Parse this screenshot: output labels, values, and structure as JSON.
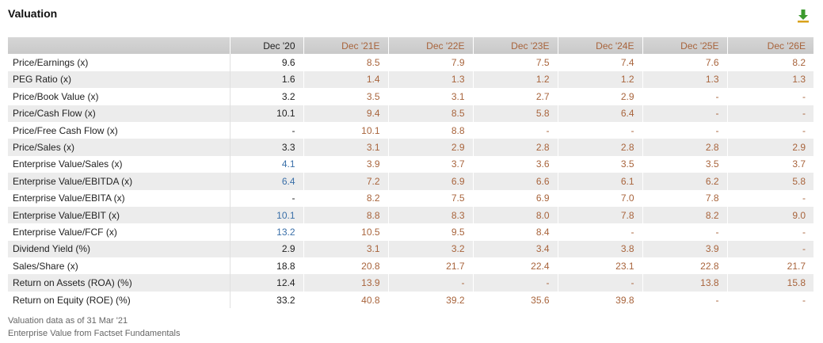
{
  "title": "Valuation",
  "download_icon": "download-icon",
  "columns": [
    "Dec '20",
    "Dec '21E",
    "Dec '22E",
    "Dec '23E",
    "Dec '24E",
    "Dec '25E",
    "Dec '26E"
  ],
  "rows": [
    {
      "label": "Price/Earnings (x)",
      "values": [
        "9.6",
        "8.5",
        "7.9",
        "7.5",
        "7.4",
        "7.6",
        "8.2"
      ],
      "first_blue": false
    },
    {
      "label": "PEG Ratio (x)",
      "values": [
        "1.6",
        "1.4",
        "1.3",
        "1.2",
        "1.2",
        "1.3",
        "1.3"
      ],
      "first_blue": false
    },
    {
      "label": "Price/Book Value (x)",
      "values": [
        "3.2",
        "3.5",
        "3.1",
        "2.7",
        "2.9",
        "-",
        "-"
      ],
      "first_blue": false
    },
    {
      "label": "Price/Cash Flow (x)",
      "values": [
        "10.1",
        "9.4",
        "8.5",
        "5.8",
        "6.4",
        "-",
        "-"
      ],
      "first_blue": false
    },
    {
      "label": "Price/Free Cash Flow (x)",
      "values": [
        "-",
        "10.1",
        "8.8",
        "-",
        "-",
        "-",
        "-"
      ],
      "first_blue": false
    },
    {
      "label": "Price/Sales (x)",
      "values": [
        "3.3",
        "3.1",
        "2.9",
        "2.8",
        "2.8",
        "2.8",
        "2.9"
      ],
      "first_blue": false
    },
    {
      "label": "Enterprise Value/Sales (x)",
      "values": [
        "4.1",
        "3.9",
        "3.7",
        "3.6",
        "3.5",
        "3.5",
        "3.7"
      ],
      "first_blue": true
    },
    {
      "label": "Enterprise Value/EBITDA (x)",
      "values": [
        "6.4",
        "7.2",
        "6.9",
        "6.6",
        "6.1",
        "6.2",
        "5.8"
      ],
      "first_blue": true
    },
    {
      "label": "Enterprise Value/EBITA (x)",
      "values": [
        "-",
        "8.2",
        "7.5",
        "6.9",
        "7.0",
        "7.8",
        "-"
      ],
      "first_blue": false
    },
    {
      "label": "Enterprise Value/EBIT (x)",
      "values": [
        "10.1",
        "8.8",
        "8.3",
        "8.0",
        "7.8",
        "8.2",
        "9.0"
      ],
      "first_blue": true
    },
    {
      "label": "Enterprise Value/FCF (x)",
      "values": [
        "13.2",
        "10.5",
        "9.5",
        "8.4",
        "-",
        "-",
        "-"
      ],
      "first_blue": true
    },
    {
      "label": "Dividend Yield (%)",
      "values": [
        "2.9",
        "3.1",
        "3.2",
        "3.4",
        "3.8",
        "3.9",
        "-"
      ],
      "first_blue": false
    },
    {
      "label": "Sales/Share (x)",
      "values": [
        "18.8",
        "20.8",
        "21.7",
        "22.4",
        "23.1",
        "22.8",
        "21.7"
      ],
      "first_blue": false
    },
    {
      "label": "Return on Assets (ROA) (%)",
      "values": [
        "12.4",
        "13.9",
        "-",
        "-",
        "-",
        "13.8",
        "15.8"
      ],
      "first_blue": false
    },
    {
      "label": "Return on Equity (ROE) (%)",
      "values": [
        "33.2",
        "40.8",
        "39.2",
        "35.6",
        "39.8",
        "-",
        "-"
      ],
      "first_blue": false
    }
  ],
  "footnotes": [
    "Valuation data as of 31 Mar '21",
    "Enterprise Value from Factset Fundamentals"
  ],
  "colors": {
    "estimate": "#a8643c",
    "link_blue": "#3a6fa8",
    "header_bg": "#cfcfcf",
    "icon_green": "#3c9a2e",
    "icon_gold": "#d9a21b"
  }
}
